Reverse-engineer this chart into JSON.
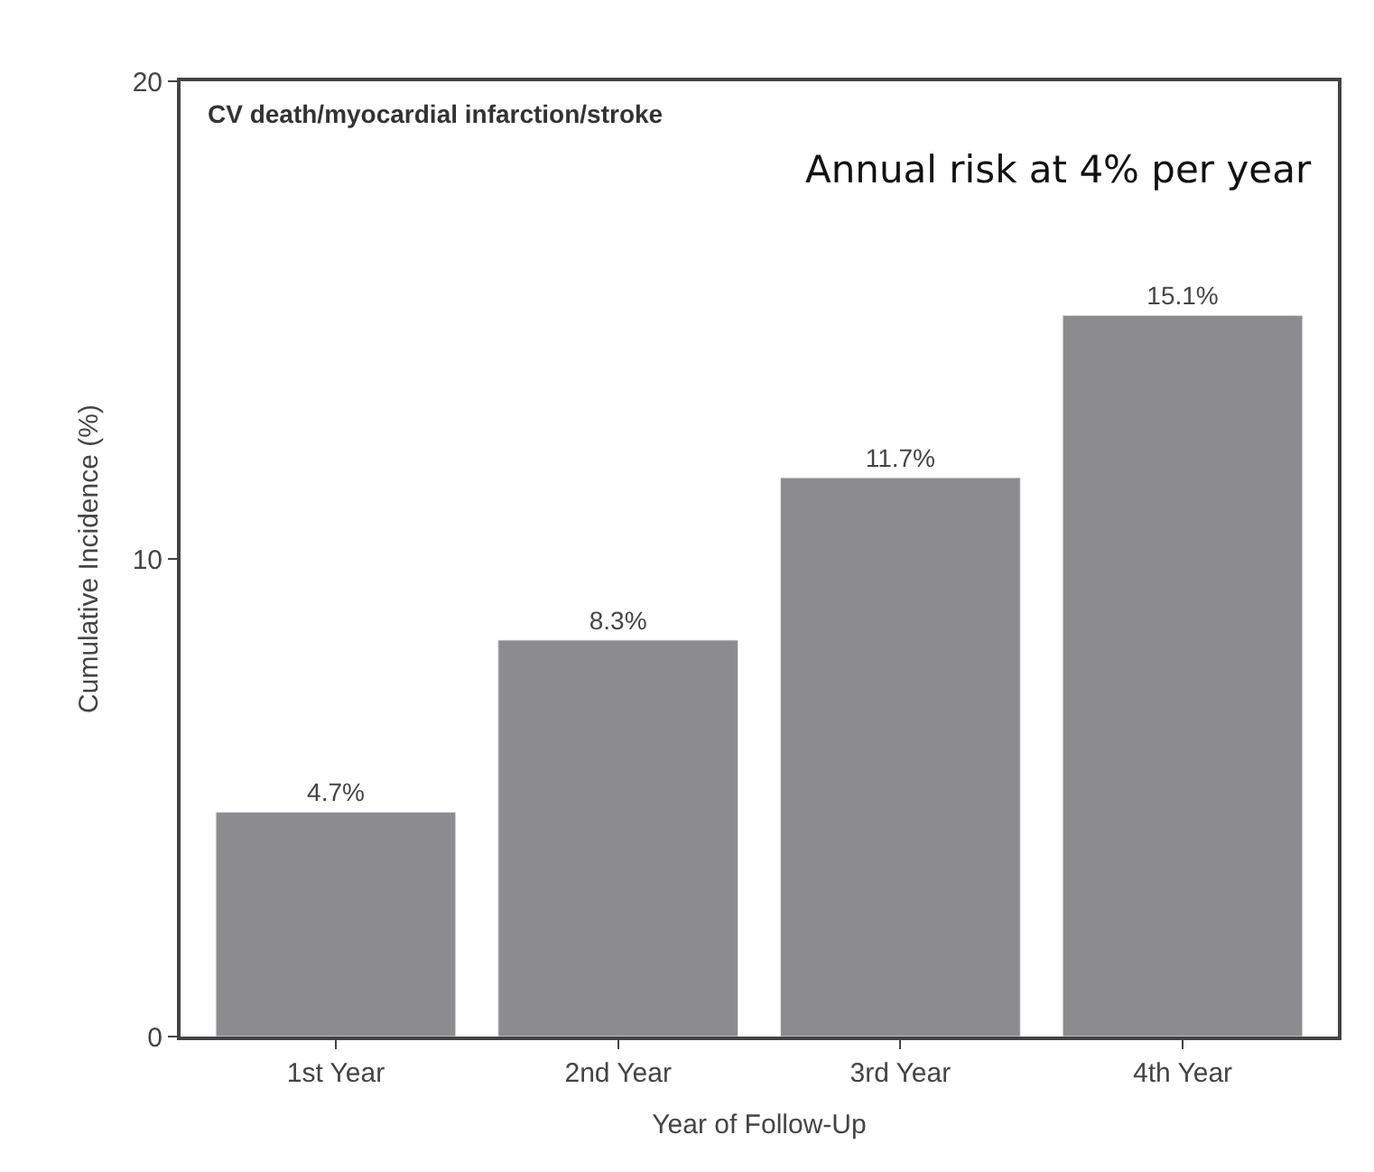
{
  "chart_data": {
    "type": "bar",
    "title": "CV death/myocardial infarction/stroke",
    "xlabel": "Year of Follow-Up",
    "ylabel": "Cumulative Incidence (%)",
    "annotations": [
      "Annual risk at 4% per year"
    ],
    "categories": [
      "1st Year",
      "2nd Year",
      "3rd Year",
      "4th Year"
    ],
    "values": [
      4.7,
      8.3,
      11.7,
      15.1
    ],
    "value_labels": [
      "4.7%",
      "8.3%",
      "11.7%",
      "15.1%"
    ],
    "color": "#8c8c8e",
    "ylim": [
      0,
      20
    ],
    "yticks": [
      0,
      10,
      20
    ]
  }
}
